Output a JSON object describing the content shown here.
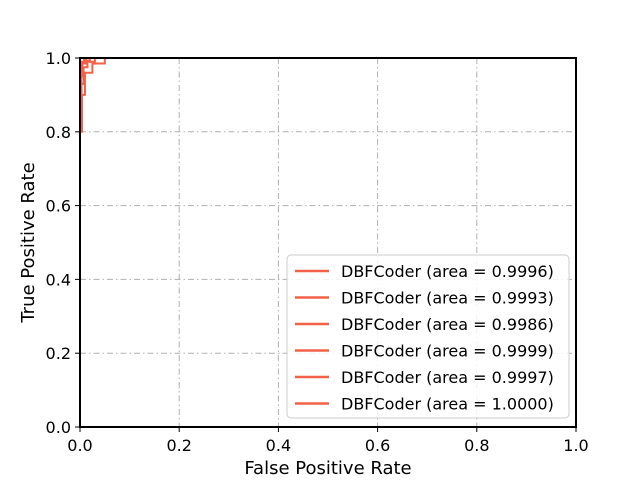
{
  "chart_data": {
    "type": "line",
    "title": "",
    "xlabel": "False Positive Rate",
    "ylabel": "True Positive Rate",
    "xlim": [
      0.0,
      1.0
    ],
    "ylim": [
      0.0,
      1.0
    ],
    "x_ticks": [
      "0.0",
      "0.2",
      "0.4",
      "0.6",
      "0.8",
      "1.0"
    ],
    "y_ticks": [
      "0.0",
      "0.2",
      "0.4",
      "0.6",
      "0.8",
      "1.0"
    ],
    "grid": true,
    "grid_style": "dash-dot",
    "legend_position": "lower-right",
    "line_color": "#f26148",
    "series": [
      {
        "name": "DBFCoder (area = 0.9996)",
        "x": [
          0.0,
          0.0,
          0.002,
          0.005,
          0.01,
          0.02,
          1.0
        ],
        "y": [
          0.0,
          0.85,
          0.95,
          0.985,
          0.993,
          1.0,
          1.0
        ]
      },
      {
        "name": "DBFCoder (area = 0.9993)",
        "x": [
          0.0,
          0.0,
          0.003,
          0.007,
          0.015,
          0.03,
          1.0
        ],
        "y": [
          0.0,
          0.82,
          0.93,
          0.975,
          0.99,
          1.0,
          1.0
        ]
      },
      {
        "name": "DBFCoder (area = 0.9986)",
        "x": [
          0.0,
          0.0,
          0.004,
          0.01,
          0.025,
          0.05,
          1.0
        ],
        "y": [
          0.0,
          0.8,
          0.9,
          0.96,
          0.985,
          1.0,
          1.0
        ]
      },
      {
        "name": "DBFCoder (area = 0.9999)",
        "x": [
          0.0,
          0.0,
          0.001,
          0.003,
          0.008,
          1.0
        ],
        "y": [
          0.0,
          0.88,
          0.97,
          0.99,
          1.0,
          1.0
        ]
      },
      {
        "name": "DBFCoder (area = 0.9997)",
        "x": [
          0.0,
          0.0,
          0.002,
          0.004,
          0.012,
          1.0
        ],
        "y": [
          0.0,
          0.86,
          0.96,
          0.985,
          1.0,
          1.0
        ]
      },
      {
        "name": "DBFCoder (area = 1.0000)",
        "x": [
          0.0,
          0.0,
          1.0
        ],
        "y": [
          0.0,
          1.0,
          1.0
        ]
      }
    ]
  }
}
